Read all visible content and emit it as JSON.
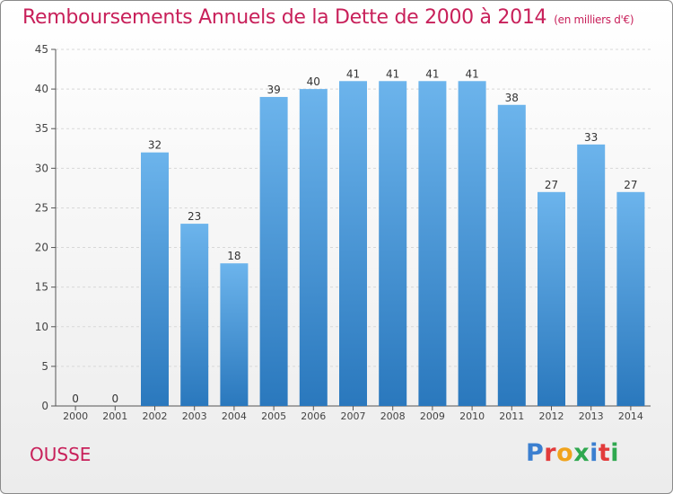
{
  "header": {
    "title": "Remboursements Annuels de la Dette de 2000 à 2014",
    "unit": "(en milliers d'€)"
  },
  "footer": {
    "commune": "OUSSE",
    "logo_text": "Proxiti",
    "logo_colors": [
      "#3b7fd0",
      "#e23b3b",
      "#f0a31c",
      "#2fa84f",
      "#3b7fd0",
      "#e23b3b",
      "#2fa84f"
    ]
  },
  "colors": {
    "bar_top": "#6cb4ec",
    "bar_bottom": "#2a78bd",
    "title": "#c8205a",
    "grid": "#d8d8d8"
  },
  "chart_data": {
    "type": "bar",
    "title": "Remboursements Annuels de la Dette de 2000 à 2014",
    "categories": [
      "2000",
      "2001",
      "2002",
      "2003",
      "2004",
      "2005",
      "2006",
      "2007",
      "2008",
      "2009",
      "2010",
      "2011",
      "2012",
      "2013",
      "2014"
    ],
    "values": [
      0,
      0,
      32,
      23,
      18,
      39,
      40,
      41,
      41,
      41,
      41,
      38,
      27,
      33,
      27
    ],
    "ylim": [
      0,
      45
    ],
    "yticks": [
      0,
      5,
      10,
      15,
      20,
      25,
      30,
      35,
      40,
      45
    ],
    "grid": true,
    "legend": "none",
    "data_labels": true
  }
}
